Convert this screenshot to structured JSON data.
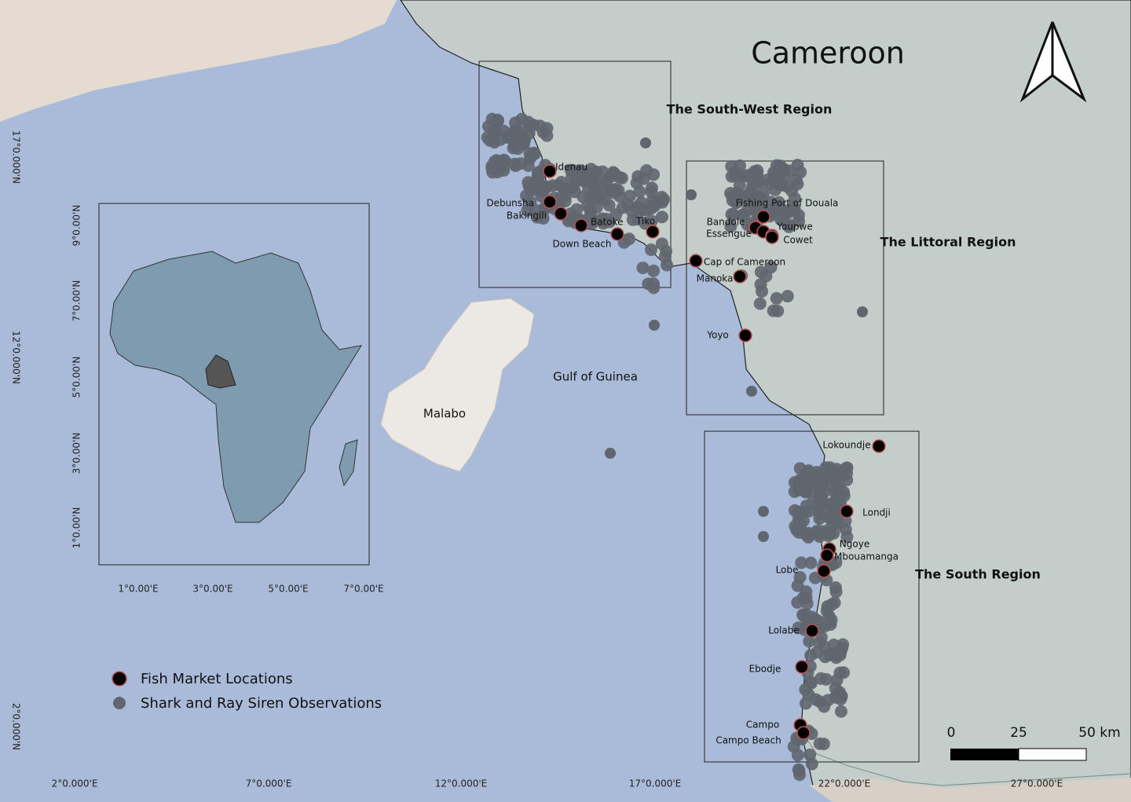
{
  "map": {
    "title": "Cameroon",
    "regions": [
      "The South-West Region",
      "The Littoral Region",
      "The South Region"
    ],
    "water_label": "Gulf of Guinea",
    "island_label": "Malabo",
    "markets": [
      "Idenau",
      "Debunsha",
      "Bakingili",
      "Batoke",
      "Down Beach",
      "Tiko",
      "Fishing Port of Douala",
      "Bandole",
      "Essengue",
      "Youpwe",
      "Cowet",
      "Cap of Cameroon",
      "Manoka",
      "Yoyo",
      "Lokoundje",
      "Londji",
      "Ngoye",
      "Mbouamanga",
      "Lobe",
      "Lolabe",
      "Ebodje",
      "Campo",
      "Campo Beach"
    ],
    "legend": [
      "Fish Market Locations",
      "Shark and Ray Siren Observations"
    ],
    "scale_bar": [
      "0",
      "25",
      "50 km"
    ],
    "main_axis": {
      "x_labels": [
        "2°0.000'E",
        "7°0.000'E",
        "12°0.000'E",
        "17°0.000'E",
        "22°0.000'E",
        "27°0.000'E"
      ],
      "y_labels": [
        "17°0.000'N",
        "12°0.000'N",
        "2°0.000'N"
      ]
    },
    "inset_axis": {
      "x_labels": [
        "1°0.00'E",
        "3°0.00'E",
        "5°0.00'E",
        "7°0.00'E"
      ],
      "y_labels": [
        "9°0.00'N",
        "7°0.00'N",
        "5°0.00'N",
        "3°0.00'N",
        "1°0.00'N"
      ]
    }
  }
}
